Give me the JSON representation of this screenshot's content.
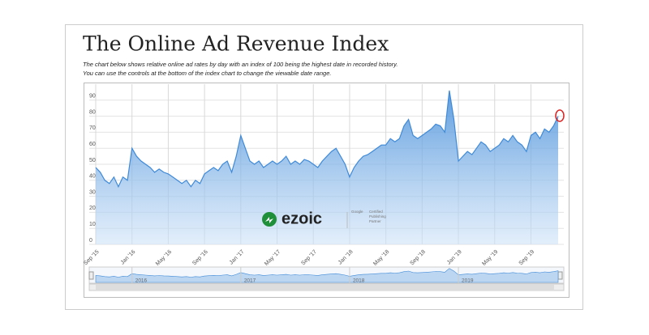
{
  "chart_data": {
    "type": "area",
    "title": "The Online Ad Revenue Index",
    "subtitle": [
      "The chart below shows relative online ad rates by day with an index of 100 being the highest date in recorded history.",
      "You can use the controls at the bottom of the index chart to change the viewable date range."
    ],
    "categories": [
      "Sep '15",
      null,
      null,
      null,
      null,
      null,
      null,
      null,
      "Jan '16",
      null,
      null,
      null,
      null,
      null,
      null,
      null,
      "May '16",
      null,
      null,
      null,
      null,
      null,
      null,
      null,
      "Sep '16",
      null,
      null,
      null,
      null,
      null,
      null,
      null,
      "Jan '17",
      null,
      null,
      null,
      null,
      null,
      null,
      null,
      "May '17",
      null,
      null,
      null,
      null,
      null,
      null,
      null,
      "Sep '17",
      null,
      null,
      null,
      null,
      null,
      null,
      null,
      "Jan '18",
      null,
      null,
      null,
      null,
      null,
      null,
      null,
      "May '18",
      null,
      null,
      null,
      null,
      null,
      null,
      null,
      "Sep '18",
      null,
      null,
      null,
      null,
      null,
      null,
      null,
      "Jan '19",
      null,
      null,
      null,
      null,
      null,
      null,
      null,
      "May '19",
      null,
      null,
      null,
      null,
      null,
      null,
      null,
      "Sep '19",
      null,
      null,
      null,
      null,
      null,
      null
    ],
    "values": [
      48,
      45,
      40,
      38,
      42,
      36,
      42,
      40,
      60,
      55,
      52,
      50,
      48,
      45,
      47,
      45,
      44,
      42,
      40,
      38,
      40,
      36,
      40,
      38,
      44,
      46,
      48,
      46,
      50,
      52,
      45,
      55,
      68,
      60,
      52,
      50,
      52,
      48,
      50,
      52,
      50,
      52,
      55,
      50,
      52,
      50,
      53,
      52,
      50,
      48,
      52,
      55,
      58,
      60,
      55,
      50,
      42,
      48,
      52,
      55,
      56,
      58,
      60,
      62,
      62,
      66,
      64,
      66,
      74,
      78,
      68,
      66,
      68,
      70,
      72,
      75,
      74,
      70,
      96,
      78,
      52,
      55,
      58,
      56,
      60,
      64,
      62,
      58,
      60,
      62,
      66,
      64,
      68,
      64,
      62,
      58,
      68,
      70,
      66,
      72,
      70,
      74,
      80
    ],
    "color": "#3f8ad8",
    "ylim": [
      0,
      100
    ],
    "yticks": [
      0,
      10,
      20,
      30,
      40,
      50,
      60,
      70,
      80,
      90
    ],
    "grid": true,
    "navigator": {
      "labels": [
        "2016",
        "2017",
        "2018",
        "2019"
      ]
    }
  },
  "logo": {
    "name": "ezoic",
    "badge": [
      "Google",
      "Certified",
      "Publishing",
      "Partner"
    ]
  }
}
